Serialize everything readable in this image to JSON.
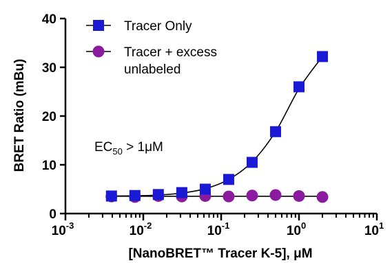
{
  "chart_data": {
    "type": "scatter",
    "xlabel": "[NanoBRET™ Tracer K-5], μM",
    "ylabel": "BRET Ratio (mBu)",
    "x_scale": "log",
    "xlim": [
      0.001,
      10
    ],
    "ylim": [
      0,
      40
    ],
    "y_ticks": [
      "0",
      "10",
      "20",
      "30",
      "40"
    ],
    "x_ticks": [
      {
        "base": "10",
        "exp": "-3"
      },
      {
        "base": "10",
        "exp": "-2"
      },
      {
        "base": "10",
        "exp": "-1"
      },
      {
        "base": "10",
        "exp": "0"
      },
      {
        "base": "10",
        "exp": "1"
      }
    ],
    "annotation": {
      "prefix": "EC",
      "sub": "50",
      "suffix": " > 1μM"
    },
    "legend_position": "top-left",
    "series": [
      {
        "name_lines": [
          "Tracer Only"
        ],
        "marker": "square",
        "color": "#1a1ad4",
        "x": [
          0.0039,
          0.0078,
          0.0156,
          0.03125,
          0.0625,
          0.125,
          0.25,
          0.5,
          1.0,
          2.0
        ],
        "y": [
          3.6,
          3.7,
          3.9,
          4.3,
          5.0,
          7.0,
          10.5,
          16.8,
          26.0,
          32.2
        ],
        "fit_y": [
          3.6,
          3.65,
          3.8,
          4.2,
          5.1,
          7.0,
          10.6,
          16.8,
          25.6,
          32.2
        ]
      },
      {
        "name_lines": [
          "Tracer + excess",
          "unlabeled"
        ],
        "marker": "circle",
        "color": "#8a1a9e",
        "x": [
          0.0039,
          0.0078,
          0.0156,
          0.03125,
          0.0625,
          0.125,
          0.25,
          0.5,
          1.0,
          2.0
        ],
        "y": [
          3.5,
          3.4,
          3.6,
          3.5,
          3.6,
          3.5,
          3.7,
          3.8,
          3.6,
          3.4
        ],
        "fit_y": [
          3.55,
          3.55,
          3.55,
          3.55,
          3.55,
          3.55,
          3.55,
          3.55,
          3.55,
          3.55
        ]
      }
    ]
  }
}
